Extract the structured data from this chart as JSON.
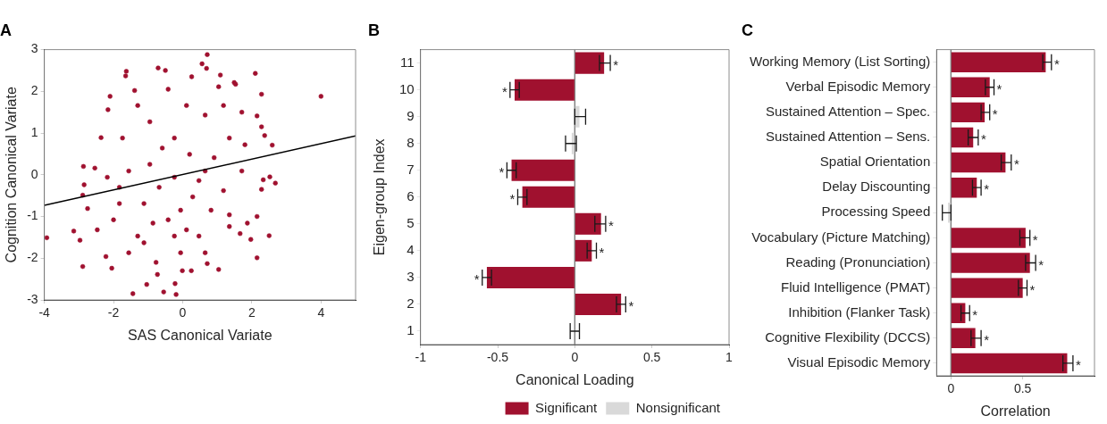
{
  "chart_data": [
    {
      "type": "scatter",
      "title": "A",
      "xlabel": "SAS Canonical Variate",
      "ylabel": "Cognition Canonical Variate",
      "xlim": [
        -4,
        5
      ],
      "ylim": [
        -3,
        3
      ],
      "xticks": [
        -4,
        -2,
        0,
        2,
        4
      ],
      "yticks": [
        -3,
        -2,
        -1,
        0,
        1,
        2,
        3
      ],
      "grid": false,
      "legend": false,
      "marker": "circle",
      "series": [
        {
          "color": "#a0112f",
          "x": [
            4.0,
            -3.93,
            -3.15,
            -2.97,
            -2.89,
            -2.87,
            -2.85,
            -2.89,
            -2.75,
            -2.54,
            -2.47,
            -2.36,
            -2.22,
            -2.16,
            -2.1,
            -2.05,
            -1.65,
            -1.63,
            -1.44,
            -1.39,
            -0.71,
            -0.5,
            -0.55,
            -0.19,
            -0.22,
            -1.04,
            -0.73,
            -0.01,
            0.25,
            0.71,
            0.56,
            0.69,
            0.26,
            1.09,
            2.1,
            2.28,
            1.49,
            1.53,
            1.04,
            1.04,
            0.71,
            2.15,
            1.97,
            2.5,
            2.15,
            2.68,
            2.52,
            2.59,
            2.37,
            2.28,
            2.33,
            2.28,
            2.15,
            1.66,
            1.87,
            1.35,
            1.35,
            -0.24,
            0.2,
            0.65,
            -0.68,
            -1.12,
            -0.42,
            0.47,
            -0.06,
            -1.3,
            -1.56,
            -0.95,
            0.65,
            1.35,
            1.71,
            1.18,
            0.11,
            -0.42,
            -1.83,
            -2.0,
            -1.56,
            -0.77,
            0.65,
            0.91,
            -0.24,
            0.29,
            -0.59,
            -1.74,
            -1.3,
            1.18,
            1.71,
            1.8,
            -1.83,
            -2.18,
            -0.95,
            -0.06,
            0.82,
            -0.86,
            0.11,
            -0.24,
            0.47,
            -1.12
          ],
          "values": [
            1.88,
            -1.51,
            -1.35,
            -1.57,
            -2.2,
            0.2,
            -0.24,
            -0.49,
            -0.81,
            0.16,
            -1.32,
            0.89,
            -1.96,
            1.56,
            1.88,
            -2.24,
            2.37,
            2.48,
            -2.85,
            2.02,
            2.56,
            2.5,
            -2.81,
            -2.87,
            -2.61,
            -2.63,
            -2.39,
            -2.3,
            -2.3,
            2.88,
            2.66,
            2.55,
            2.35,
            2.39,
            2.43,
            1.93,
            2.21,
            2.17,
            2.11,
            -2.27,
            -2.13,
            -1.99,
            -1.55,
            -1.46,
            -1.0,
            -0.2,
            -0.05,
            0.71,
            0.94,
            1.15,
            -0.12,
            -0.35,
            1.41,
            -1.41,
            -1.16,
            -0.96,
            -1.24,
            0.88,
            0.49,
            0.09,
            -0.3,
            -0.69,
            -1.08,
            -1.47,
            -1.87,
            -1.47,
            0.09,
            1.27,
            1.43,
            0.88,
            0.09,
            -0.38,
            1.66,
            2.05,
            -0.69,
            -1.08,
            -1.87,
            -2.1,
            -1.87,
            0.41,
            -0.06,
            -0.53,
            0.64,
            0.88,
            1.66,
            1.66,
            1.5,
            0.72,
            -0.3,
            -0.06,
            0.25,
            -0.85,
            -0.85,
            -1.16,
            -1.32,
            -1.47,
            -0.14,
            -1.63
          ]
        },
        {
          "type": "line",
          "color": "#000000",
          "marker": "none",
          "x": [
            -4,
            5
          ],
          "values": [
            -0.73,
            0.93
          ]
        }
      ]
    },
    {
      "type": "bar",
      "orientation": "horizontal",
      "title": "B",
      "xlabel": "Canonical Loading",
      "ylabel": "Eigen-group Index",
      "categories": [
        "11",
        "10",
        "9",
        "8",
        "7",
        "6",
        "5",
        "4",
        "3",
        "2",
        "1"
      ],
      "xlim": [
        -1,
        1
      ],
      "xticks": [
        -1,
        -0.5,
        0,
        0.5,
        1
      ],
      "grid": false,
      "legend": "bottom right",
      "series": [
        {
          "name": "Significant",
          "color": "#a0112f",
          "values": [
            0.19,
            -0.39,
            null,
            null,
            -0.41,
            -0.34,
            0.17,
            0.11,
            -0.57,
            0.3,
            null
          ],
          "value_labels": [
            "*",
            "*",
            null,
            null,
            "*",
            "*",
            "*",
            "*",
            "*",
            "*",
            null
          ],
          "errors": [
            [
              0.16,
              0.23
            ],
            [
              -0.42,
              -0.36
            ],
            null,
            null,
            [
              -0.44,
              -0.38
            ],
            [
              -0.37,
              -0.31
            ],
            [
              0.13,
              0.2
            ],
            [
              0.08,
              0.14
            ],
            [
              -0.6,
              -0.54
            ],
            [
              0.27,
              0.33
            ],
            null
          ]
        },
        {
          "name": "Nonsignificant",
          "color": "#d9d9d9",
          "values": [
            null,
            null,
            0.03,
            -0.02,
            null,
            null,
            null,
            null,
            null,
            null,
            0.0
          ],
          "errors": [
            null,
            null,
            [
              0.0,
              0.07
            ],
            [
              -0.06,
              0.01
            ],
            null,
            null,
            null,
            null,
            null,
            null,
            [
              -0.03,
              0.03
            ]
          ]
        }
      ],
      "ref_lines": [
        {
          "axis": "x",
          "value": 0,
          "color": "#808080"
        }
      ]
    },
    {
      "type": "bar",
      "orientation": "horizontal",
      "title": "C",
      "xlabel": "Correlation",
      "categories": [
        "Working Memory (List Sorting)",
        "Verbal Episodic Memory",
        "Sustained Attention – Spec.",
        "Sustained Attention – Sens.",
        "Spatial Orientation",
        "Delay Discounting",
        "Processing Speed",
        "Vocabulary (Picture Matching)",
        "Reading (Pronunciation)",
        "Fluid Intelligence (PMAT)",
        "Inhibition (Flanker Task)",
        "Cognitive Flexibility (DCCS)",
        "Visual Episodic Memory"
      ],
      "xlim": [
        -0.1,
        1
      ],
      "xticks": [
        0,
        0.5
      ],
      "grid": false,
      "values": [
        0.66,
        0.27,
        0.235,
        0.155,
        0.38,
        0.18,
        -0.02,
        0.52,
        0.55,
        0.5,
        0.1,
        0.17,
        0.81
      ],
      "colors": [
        "#a0112f",
        "#a0112f",
        "#a0112f",
        "#a0112f",
        "#a0112f",
        "#a0112f",
        "#d9d9d9",
        "#a0112f",
        "#a0112f",
        "#a0112f",
        "#a0112f",
        "#a0112f",
        "#a0112f"
      ],
      "errors": [
        [
          0.64,
          0.7
        ],
        [
          0.24,
          0.3
        ],
        [
          0.21,
          0.27
        ],
        [
          0.12,
          0.19
        ],
        [
          0.35,
          0.42
        ],
        [
          0.15,
          0.21
        ],
        [
          -0.06,
          0.0
        ],
        [
          0.48,
          0.55
        ],
        [
          0.52,
          0.59
        ],
        [
          0.47,
          0.53
        ],
        [
          0.07,
          0.13
        ],
        [
          0.14,
          0.21
        ],
        [
          0.78,
          0.85
        ]
      ],
      "value_labels": [
        "*",
        "*",
        "*",
        "*",
        "*",
        "*",
        null,
        "*",
        "*",
        "*",
        "*",
        "*",
        "*"
      ],
      "ref_lines": [
        {
          "axis": "x",
          "value": 0,
          "color": "#808080"
        }
      ]
    }
  ]
}
